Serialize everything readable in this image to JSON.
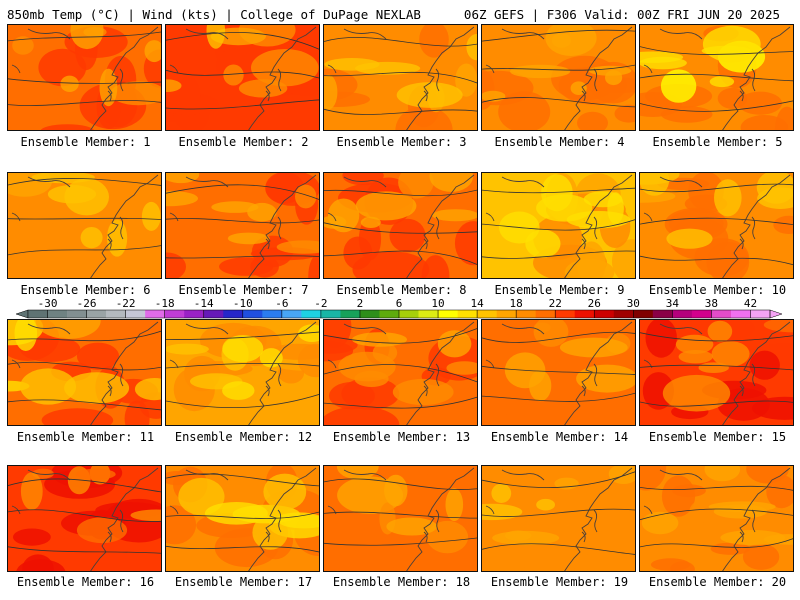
{
  "header": {
    "left": "850mb Temp (°C) | Wind (kts) | College of DuPage NEXLAB",
    "right": "06Z GEFS | F306 Valid: 00Z FRI JUN 20 2025"
  },
  "colorbar": {
    "tick_labels": [
      "-30",
      "-26",
      "-22",
      "-18",
      "-14",
      "-10",
      "-6",
      "-2",
      "2",
      "6",
      "10",
      "14",
      "18",
      "22",
      "26",
      "30",
      "34",
      "38",
      "42"
    ],
    "colors": [
      "#5f7373",
      "#6f8282",
      "#828f91",
      "#9aa3a5",
      "#b4b9be",
      "#c6c7d6",
      "#e06be8",
      "#c03dd6",
      "#9a22c6",
      "#6619b8",
      "#2626c9",
      "#1f4fe0",
      "#2a7cf0",
      "#48a6f5",
      "#1ed2e2",
      "#19b6a6",
      "#17a25a",
      "#2e8f1a",
      "#5eab0d",
      "#a6d00a",
      "#dceb14",
      "#ffff00",
      "#ffe000",
      "#ffc300",
      "#ffa500",
      "#ff8c00",
      "#ff6e00",
      "#ff3a00",
      "#ee1000",
      "#cc0000",
      "#a00000",
      "#800000",
      "#8a0046",
      "#b4007c",
      "#d2008c",
      "#e34cc8",
      "#f070f0",
      "#f4a3f4"
    ]
  },
  "chart_data": {
    "type": "heatmap",
    "title": "850mb Temp (°C) | Wind (kts)",
    "model": "06Z GEFS",
    "forecast_hour": "F306",
    "valid": "00Z FRI JUN 20 2025",
    "units": "°C",
    "range": [
      -30,
      42
    ],
    "panels": [
      {
        "label": "Ensemble Member: 1",
        "dominant_temp_c": 21,
        "max_temp_c": 23,
        "min_temp_c": 17
      },
      {
        "label": "Ensemble Member: 2",
        "dominant_temp_c": 22,
        "max_temp_c": 24,
        "min_temp_c": 15
      },
      {
        "label": "Ensemble Member: 3",
        "dominant_temp_c": 18,
        "max_temp_c": 21,
        "min_temp_c": 15
      },
      {
        "label": "Ensemble Member: 4",
        "dominant_temp_c": 19,
        "max_temp_c": 22,
        "min_temp_c": 16
      },
      {
        "label": "Ensemble Member: 5",
        "dominant_temp_c": 18,
        "max_temp_c": 22,
        "min_temp_c": 10
      },
      {
        "label": "Ensemble Member: 6",
        "dominant_temp_c": 18,
        "max_temp_c": 20,
        "min_temp_c": 15
      },
      {
        "label": "Ensemble Member: 7",
        "dominant_temp_c": 21,
        "max_temp_c": 23,
        "min_temp_c": 16
      },
      {
        "label": "Ensemble Member: 8",
        "dominant_temp_c": 21,
        "max_temp_c": 23,
        "min_temp_c": 16
      },
      {
        "label": "Ensemble Member: 9",
        "dominant_temp_c": 15,
        "max_temp_c": 19,
        "min_temp_c": 12
      },
      {
        "label": "Ensemble Member: 10",
        "dominant_temp_c": 19,
        "max_temp_c": 22,
        "min_temp_c": 14
      },
      {
        "label": "Ensemble Member: 11",
        "dominant_temp_c": 21,
        "max_temp_c": 24,
        "min_temp_c": 12
      },
      {
        "label": "Ensemble Member: 12",
        "dominant_temp_c": 16,
        "max_temp_c": 19,
        "min_temp_c": 13
      },
      {
        "label": "Ensemble Member: 13",
        "dominant_temp_c": 21,
        "max_temp_c": 24,
        "min_temp_c": 17
      },
      {
        "label": "Ensemble Member: 14",
        "dominant_temp_c": 20,
        "max_temp_c": 22,
        "min_temp_c": 17
      },
      {
        "label": "Ensemble Member: 15",
        "dominant_temp_c": 22,
        "max_temp_c": 25,
        "min_temp_c": 18
      },
      {
        "label": "Ensemble Member: 16",
        "dominant_temp_c": 22,
        "max_temp_c": 26,
        "min_temp_c": 18
      },
      {
        "label": "Ensemble Member: 17",
        "dominant_temp_c": 19,
        "max_temp_c": 21,
        "min_temp_c": 12
      },
      {
        "label": "Ensemble Member: 18",
        "dominant_temp_c": 20,
        "max_temp_c": 22,
        "min_temp_c": 16
      },
      {
        "label": "Ensemble Member: 19",
        "dominant_temp_c": 18,
        "max_temp_c": 20,
        "min_temp_c": 15
      },
      {
        "label": "Ensemble Member: 20",
        "dominant_temp_c": 19,
        "max_temp_c": 21,
        "min_temp_c": 17
      }
    ]
  }
}
